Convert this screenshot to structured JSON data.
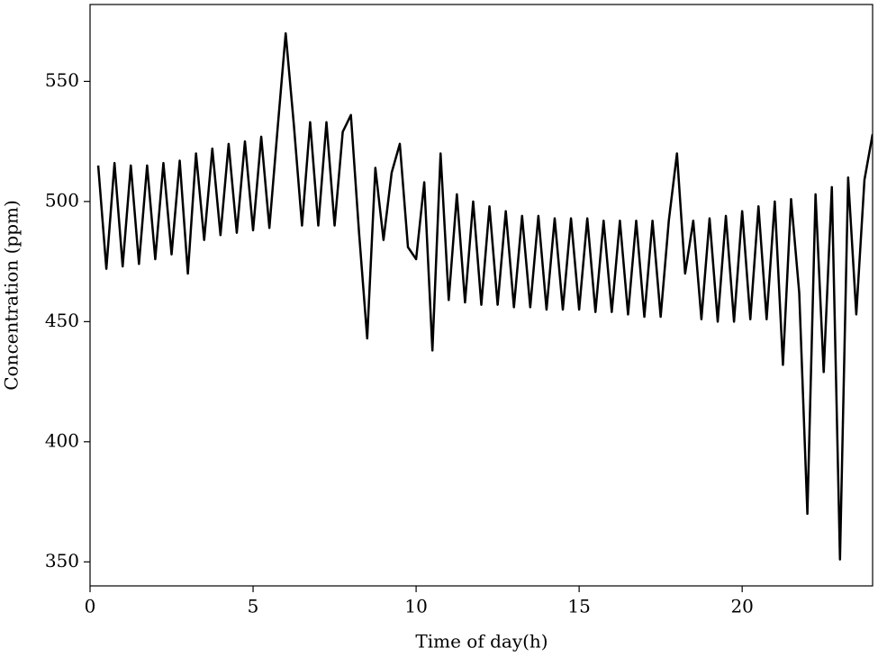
{
  "chart_data": {
    "type": "line",
    "x_label": "Time of day(h)",
    "y_label": "Concentration (ppm)",
    "x": [
      0.25,
      0.5,
      0.75,
      1,
      1.25,
      1.5,
      1.75,
      2,
      2.25,
      2.5,
      2.75,
      3,
      3.25,
      3.5,
      3.75,
      4,
      4.25,
      4.5,
      4.75,
      5,
      5.25,
      5.5,
      5.75,
      6,
      6.25,
      6.5,
      6.75,
      7,
      7.25,
      7.5,
      7.75,
      8,
      8.25,
      8.5,
      8.75,
      9,
      9.25,
      9.5,
      9.75,
      10,
      10.25,
      10.5,
      10.75,
      11,
      11.25,
      11.5,
      11.75,
      12,
      12.25,
      12.5,
      12.75,
      13,
      13.25,
      13.5,
      13.75,
      14,
      14.25,
      14.5,
      14.75,
      15,
      15.25,
      15.5,
      15.75,
      16,
      16.25,
      16.5,
      16.75,
      17,
      17.25,
      17.5,
      17.75,
      18,
      18.25,
      18.5,
      18.75,
      19,
      19.25,
      19.5,
      19.75,
      20,
      20.25,
      20.5,
      20.75,
      21,
      21.25,
      21.5,
      21.75,
      22,
      22.25,
      22.5,
      22.75,
      23,
      23.25,
      23.5,
      23.75,
      24
    ],
    "series": [
      {
        "name": "Concentration",
        "color": "#000000",
        "values": [
          515,
          472,
          516,
          473,
          515,
          474,
          515,
          476,
          516,
          478,
          517,
          470,
          520,
          484,
          522,
          486,
          524,
          487,
          525,
          488,
          527,
          489,
          530,
          570,
          532,
          490,
          533,
          490,
          533,
          490,
          529,
          536,
          487,
          443,
          514,
          484,
          512,
          524,
          481,
          476,
          508,
          438,
          520,
          459,
          503,
          458,
          500,
          457,
          498,
          457,
          496,
          456,
          494,
          456,
          494,
          455,
          493,
          455,
          493,
          455,
          493,
          454,
          492,
          454,
          492,
          453,
          492,
          452,
          492,
          452,
          492,
          520,
          470,
          492,
          451,
          493,
          450,
          494,
          450,
          496,
          451,
          498,
          451,
          500,
          432,
          501,
          462,
          370,
          503,
          429,
          506,
          351,
          510,
          453,
          509,
          528
        ]
      }
    ],
    "xlim": [
      0,
      24
    ],
    "ylim": [
      340,
      582
    ],
    "xticks": [
      0,
      5,
      10,
      15,
      20
    ],
    "yticks": [
      350,
      400,
      450,
      500,
      550
    ]
  }
}
